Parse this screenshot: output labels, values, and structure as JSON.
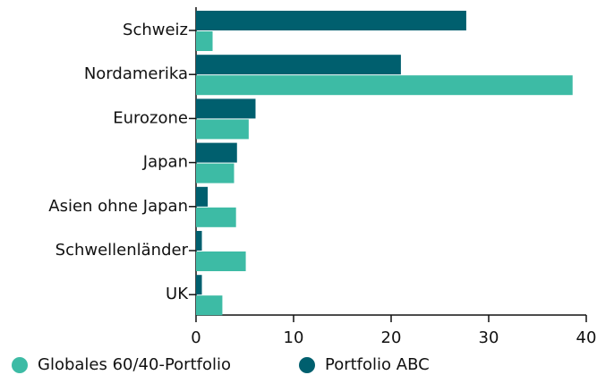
{
  "chart_data": {
    "type": "barh",
    "categories": [
      "Schweiz",
      "Nordamerika",
      "Eurozone",
      "Japan",
      "Asien ohne Japan",
      "Schwellenländer",
      "UK"
    ],
    "series": [
      {
        "name": "Globales 60/40-Portfolio",
        "color": "#3dbba5",
        "values": [
          1.7,
          38.6,
          5.4,
          3.9,
          4.1,
          5.1,
          2.7
        ]
      },
      {
        "name": "Portfolio ABC",
        "color": "#005f6e",
        "values": [
          27.7,
          21.0,
          6.1,
          4.2,
          1.2,
          0.6,
          0.6
        ]
      }
    ],
    "xlim": [
      0,
      40
    ],
    "xticks": [
      0,
      10,
      20,
      30,
      40
    ],
    "legend": "bottom-left"
  }
}
